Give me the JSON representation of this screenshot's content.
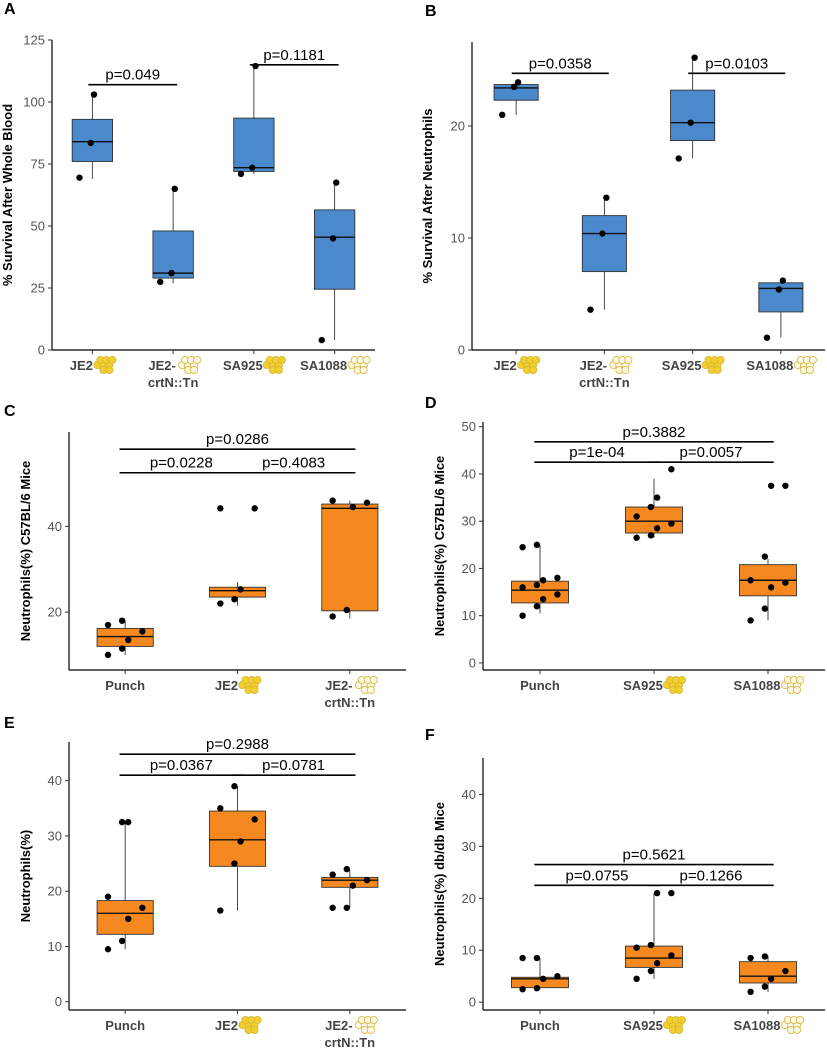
{
  "colors": {
    "blue_box": "#4a89cc",
    "orange_box": "#f5891f",
    "cell_filled": "#f1cf2d",
    "cell_empty": "#fbf7e2",
    "cell_stroke": "#d6b53a"
  },
  "chart_data": [
    {
      "panel": "A",
      "type": "box",
      "ylabel": "% Survival After Whole Blood",
      "ylim": [
        0,
        125
      ],
      "yticks": [
        0,
        25,
        50,
        75,
        100,
        125
      ],
      "categories": [
        "JE2",
        "JE2-\ncrtN::Tn",
        "SA925",
        "SA1088"
      ],
      "category_icons": [
        "filled",
        "empty",
        "filled",
        "empty"
      ],
      "groups": [
        {
          "q1": 76,
          "median": 84,
          "q3": 93,
          "whisker_low": 69,
          "whisker_high": 103,
          "points": [
            69.5,
            83.5,
            103
          ]
        },
        {
          "q1": 29,
          "median": 31,
          "q3": 48,
          "whisker_low": 27,
          "whisker_high": 65,
          "points": [
            27.5,
            31,
            65
          ]
        },
        {
          "q1": 72,
          "median": 73.5,
          "q3": 93.5,
          "whisker_low": 71,
          "whisker_high": 114,
          "points": [
            71,
            73.5,
            114.5
          ]
        },
        {
          "q1": 24.5,
          "median": 45.5,
          "q3": 56.5,
          "whisker_low": 4,
          "whisker_high": 67.5,
          "points": [
            4,
            45,
            67.5
          ]
        }
      ],
      "comparisons": [
        {
          "from": 0,
          "to": 1,
          "y": 107,
          "label": "p=0.049"
        },
        {
          "from": 2,
          "to": 3,
          "y": 115,
          "label": "p=0.1181"
        }
      ]
    },
    {
      "panel": "B",
      "type": "box",
      "ylabel": "% Survival After Neutrophils",
      "ylim": [
        0,
        27.5
      ],
      "yticks": [
        0,
        10,
        20
      ],
      "categories": [
        "JE2",
        "JE2-\ncrtN::Tn",
        "SA925",
        "SA1088"
      ],
      "category_icons": [
        "filled",
        "empty",
        "filled",
        "empty"
      ],
      "groups": [
        {
          "q1": 22.3,
          "median": 23.4,
          "q3": 23.7,
          "whisker_low": 21,
          "whisker_high": 24,
          "points": [
            21,
            23.5,
            23.9
          ]
        },
        {
          "q1": 7,
          "median": 10.4,
          "q3": 12,
          "whisker_low": 3.6,
          "whisker_high": 13.6,
          "points": [
            3.6,
            10.4,
            13.6
          ]
        },
        {
          "q1": 18.7,
          "median": 20.3,
          "q3": 23.2,
          "whisker_low": 17.1,
          "whisker_high": 26.1,
          "points": [
            17.1,
            20.3,
            26.1
          ]
        },
        {
          "q1": 3.4,
          "median": 5.5,
          "q3": 6.0,
          "whisker_low": 1.1,
          "whisker_high": 6.2,
          "points": [
            1.1,
            5.4,
            6.2
          ]
        }
      ],
      "comparisons": [
        {
          "from": 0,
          "to": 1,
          "y": 24.7,
          "label": "p=0.0358"
        },
        {
          "from": 2,
          "to": 3,
          "y": 24.7,
          "label": "p=0.0103"
        }
      ]
    },
    {
      "panel": "C",
      "type": "box",
      "ylabel": "Neutrophils(%) C57BL/6 Mice",
      "ylim": [
        6.5,
        62
      ],
      "yticks": [
        20,
        40
      ],
      "categories": [
        "Punch",
        "JE2",
        "JE2-\ncrtN::Tn"
      ],
      "category_icons": [
        "none",
        "filled",
        "empty"
      ],
      "groups": [
        {
          "q1": 12,
          "median": 14.3,
          "q3": 16.2,
          "whisker_low": 10,
          "whisker_high": 18,
          "points": [
            10,
            11.5,
            13.5,
            15.5,
            17,
            18
          ]
        },
        {
          "q1": 23.5,
          "median": 25,
          "q3": 25.8,
          "whisker_low": 21.5,
          "whisker_high": 27,
          "points": [
            22,
            23,
            25.3,
            44.2,
            44.2
          ]
        },
        {
          "q1": 20.3,
          "median": 44.2,
          "q3": 45.2,
          "whisker_low": 18.5,
          "whisker_high": 46,
          "points": [
            19,
            20.5,
            44.5,
            45.5,
            46
          ]
        }
      ],
      "comparisons": [
        {
          "from": 0,
          "to": 1,
          "y": 52.5,
          "label": "p=0.0228"
        },
        {
          "from": 1,
          "to": 2,
          "y": 52.5,
          "label": "p=0.4083"
        },
        {
          "from": 0,
          "to": 2,
          "y": 58,
          "label": "p=0.0286"
        }
      ]
    },
    {
      "panel": "D",
      "type": "box",
      "ylabel": "Neutrophils(%) C57BL/6 Mice",
      "ylim": [
        -1.5,
        51
      ],
      "yticks": [
        0,
        10,
        20,
        30,
        40,
        50
      ],
      "categories": [
        "Punch",
        "SA925",
        "SA1088"
      ],
      "category_icons": [
        "none",
        "filled",
        "empty"
      ],
      "groups": [
        {
          "q1": 12.7,
          "median": 15.4,
          "q3": 17.3,
          "whisker_low": 10.5,
          "whisker_high": 25,
          "points": [
            10,
            12,
            13.5,
            14.5,
            16,
            16.5,
            17.5,
            18,
            24.5,
            25
          ]
        },
        {
          "q1": 27.5,
          "median": 30,
          "q3": 33,
          "whisker_low": 26.5,
          "whisker_high": 39,
          "points": [
            26.5,
            27,
            28.5,
            29.5,
            31,
            33,
            35,
            41
          ]
        },
        {
          "q1": 14.2,
          "median": 17.5,
          "q3": 20.8,
          "whisker_low": 9,
          "whisker_high": 22,
          "points": [
            9,
            11.5,
            16,
            17,
            17.5,
            22.5,
            37.5,
            37.5
          ]
        }
      ],
      "comparisons": [
        {
          "from": 0,
          "to": 1,
          "y": 42.5,
          "label": "p=1e-04"
        },
        {
          "from": 1,
          "to": 2,
          "y": 42.5,
          "label": "p=0.0057"
        },
        {
          "from": 0,
          "to": 2,
          "y": 46.8,
          "label": "p=0.3882"
        }
      ]
    },
    {
      "panel": "E",
      "type": "box",
      "ylabel": "Neutrophils(%)",
      "ylim": [
        -1.5,
        47
      ],
      "yticks": [
        0,
        10,
        20,
        30,
        40
      ],
      "categories": [
        "Punch",
        "JE2",
        "JE2-\ncrtN::Tn"
      ],
      "category_icons": [
        "none",
        "filled",
        "empty"
      ],
      "groups": [
        {
          "q1": 12.2,
          "median": 16,
          "q3": 18.3,
          "whisker_low": 9.5,
          "whisker_high": 32.5,
          "points": [
            9.5,
            11,
            15,
            17,
            19,
            32.5,
            32.5
          ]
        },
        {
          "q1": 24.5,
          "median": 29.3,
          "q3": 34.5,
          "whisker_low": 16.5,
          "whisker_high": 39,
          "points": [
            16.5,
            25,
            29,
            33,
            35,
            39
          ]
        },
        {
          "q1": 20.7,
          "median": 22,
          "q3": 22.5,
          "whisker_low": 17,
          "whisker_high": 24,
          "points": [
            17,
            17,
            21,
            22,
            23,
            24
          ]
        }
      ],
      "comparisons": [
        {
          "from": 0,
          "to": 1,
          "y": 41,
          "label": "p=0.0367"
        },
        {
          "from": 1,
          "to": 2,
          "y": 41,
          "label": "p=0.0781"
        },
        {
          "from": 0,
          "to": 2,
          "y": 44.8,
          "label": "p=0.2988"
        }
      ]
    },
    {
      "panel": "F",
      "type": "box",
      "ylabel": "Neutrophils(%) db/db Mice",
      "ylim": [
        -1.5,
        47
      ],
      "yticks": [
        0,
        10,
        20,
        30,
        40
      ],
      "categories": [
        "Punch",
        "SA925",
        "SA1088"
      ],
      "category_icons": [
        "none",
        "filled",
        "empty"
      ],
      "groups": [
        {
          "q1": 2.8,
          "median": 4.5,
          "q3": 4.8,
          "whisker_low": 2.5,
          "whisker_high": 8.5,
          "points": [
            2.5,
            2.7,
            4.5,
            5,
            8.5,
            8.5
          ]
        },
        {
          "q1": 6.7,
          "median": 8.5,
          "q3": 10.8,
          "whisker_low": 4.5,
          "whisker_high": 21,
          "points": [
            4.5,
            6,
            7.5,
            9,
            10.5,
            11,
            21,
            21
          ]
        },
        {
          "q1": 3.7,
          "median": 5,
          "q3": 7.8,
          "whisker_low": 2,
          "whisker_high": 9,
          "points": [
            2,
            3,
            4.5,
            6,
            8.5,
            8.8
          ]
        }
      ],
      "comparisons": [
        {
          "from": 0,
          "to": 1,
          "y": 22.5,
          "label": "p=0.0755"
        },
        {
          "from": 1,
          "to": 2,
          "y": 22.5,
          "label": "p=0.1266"
        },
        {
          "from": 0,
          "to": 2,
          "y": 26.5,
          "label": "p=0.5621"
        }
      ]
    }
  ]
}
